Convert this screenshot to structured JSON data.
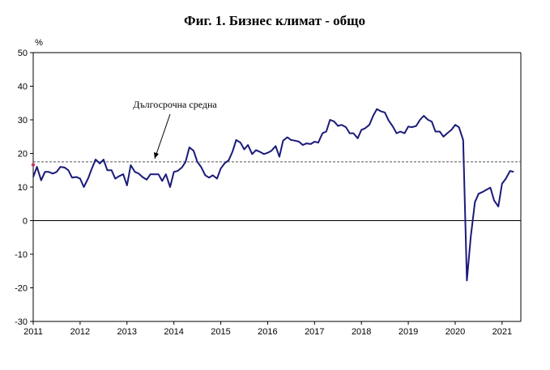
{
  "chart_data": {
    "type": "line",
    "title": "Фиг. 1. Бизнес климат - общо",
    "ylabel": "%",
    "xlabel": "",
    "ylim": [
      -30,
      50
    ],
    "yticks": [
      50,
      40,
      30,
      20,
      10,
      0,
      -10,
      -20,
      -30
    ],
    "xlim": [
      2011,
      2021.4
    ],
    "xticks": [
      "2011",
      "2012",
      "2013",
      "2014",
      "2015",
      "2016",
      "2017",
      "2018",
      "2019",
      "2020",
      "2021"
    ],
    "grid": false,
    "legend": "none",
    "colors": {
      "series": "#1a1a7a",
      "average": "#555555",
      "zero": "#000000",
      "marker": "#cc3366"
    },
    "reference_line": {
      "label": "Дългосрочна средна",
      "value": 17.5
    },
    "series": [
      {
        "values": [
          [
            2011.0,
            13.0
          ],
          [
            2011.08,
            16.0
          ],
          [
            2011.17,
            12.0
          ],
          [
            2011.25,
            14.5
          ],
          [
            2011.33,
            14.5
          ],
          [
            2011.42,
            14.0
          ],
          [
            2011.5,
            14.5
          ],
          [
            2011.58,
            16.0
          ],
          [
            2011.67,
            15.8
          ],
          [
            2011.75,
            15.0
          ],
          [
            2011.83,
            12.8
          ],
          [
            2011.92,
            13.0
          ],
          [
            2012.0,
            12.5
          ],
          [
            2012.08,
            10.0
          ],
          [
            2012.17,
            12.5
          ],
          [
            2012.25,
            15.5
          ],
          [
            2012.33,
            18.2
          ],
          [
            2012.42,
            17.0
          ],
          [
            2012.5,
            18.2
          ],
          [
            2012.58,
            15.0
          ],
          [
            2012.67,
            15.0
          ],
          [
            2012.75,
            12.5
          ],
          [
            2012.83,
            13.2
          ],
          [
            2012.92,
            13.8
          ],
          [
            2013.0,
            10.5
          ],
          [
            2013.08,
            16.5
          ],
          [
            2013.17,
            14.5
          ],
          [
            2013.25,
            14.0
          ],
          [
            2013.33,
            13.0
          ],
          [
            2013.42,
            12.2
          ],
          [
            2013.5,
            13.8
          ],
          [
            2013.58,
            13.8
          ],
          [
            2013.67,
            13.8
          ],
          [
            2013.75,
            11.8
          ],
          [
            2013.83,
            13.8
          ],
          [
            2013.92,
            10.0
          ],
          [
            2014.0,
            14.5
          ],
          [
            2014.08,
            14.8
          ],
          [
            2014.17,
            15.8
          ],
          [
            2014.25,
            17.5
          ],
          [
            2014.33,
            21.8
          ],
          [
            2014.42,
            20.8
          ],
          [
            2014.5,
            17.5
          ],
          [
            2014.58,
            16.0
          ],
          [
            2014.67,
            13.5
          ],
          [
            2014.75,
            12.8
          ],
          [
            2014.83,
            13.5
          ],
          [
            2014.92,
            12.5
          ],
          [
            2015.0,
            15.5
          ],
          [
            2015.08,
            17.0
          ],
          [
            2015.17,
            18.0
          ],
          [
            2015.25,
            20.5
          ],
          [
            2015.33,
            24.0
          ],
          [
            2015.42,
            23.2
          ],
          [
            2015.5,
            21.2
          ],
          [
            2015.58,
            22.5
          ],
          [
            2015.67,
            19.8
          ],
          [
            2015.75,
            21.0
          ],
          [
            2015.83,
            20.5
          ],
          [
            2015.92,
            19.8
          ],
          [
            2016.0,
            20.2
          ],
          [
            2016.08,
            20.8
          ],
          [
            2016.17,
            22.2
          ],
          [
            2016.25,
            19.0
          ],
          [
            2016.33,
            23.8
          ],
          [
            2016.42,
            24.8
          ],
          [
            2016.5,
            24.0
          ],
          [
            2016.58,
            23.8
          ],
          [
            2016.67,
            23.5
          ],
          [
            2016.75,
            22.5
          ],
          [
            2016.83,
            23.0
          ],
          [
            2016.92,
            22.8
          ],
          [
            2017.0,
            23.5
          ],
          [
            2017.08,
            23.2
          ],
          [
            2017.17,
            26.0
          ],
          [
            2017.25,
            26.5
          ],
          [
            2017.33,
            30.0
          ],
          [
            2017.42,
            29.5
          ],
          [
            2017.5,
            28.2
          ],
          [
            2017.58,
            28.5
          ],
          [
            2017.67,
            27.8
          ],
          [
            2017.75,
            26.0
          ],
          [
            2017.83,
            26.0
          ],
          [
            2017.92,
            24.5
          ],
          [
            2018.0,
            27.0
          ],
          [
            2018.08,
            27.5
          ],
          [
            2018.17,
            28.5
          ],
          [
            2018.25,
            31.2
          ],
          [
            2018.33,
            33.2
          ],
          [
            2018.42,
            32.5
          ],
          [
            2018.5,
            32.2
          ],
          [
            2018.58,
            29.8
          ],
          [
            2018.67,
            28.0
          ],
          [
            2018.75,
            26.0
          ],
          [
            2018.83,
            26.5
          ],
          [
            2018.92,
            26.0
          ],
          [
            2019.0,
            28.0
          ],
          [
            2019.08,
            27.8
          ],
          [
            2019.17,
            28.2
          ],
          [
            2019.25,
            30.0
          ],
          [
            2019.33,
            31.2
          ],
          [
            2019.42,
            30.0
          ],
          [
            2019.5,
            29.5
          ],
          [
            2019.58,
            26.5
          ],
          [
            2019.67,
            26.5
          ],
          [
            2019.75,
            25.0
          ],
          [
            2019.83,
            26.0
          ],
          [
            2019.92,
            27.0
          ],
          [
            2020.0,
            28.5
          ],
          [
            2020.08,
            27.8
          ],
          [
            2020.17,
            24.0
          ],
          [
            2020.25,
            -17.8
          ],
          [
            2020.33,
            -5.0
          ],
          [
            2020.42,
            5.5
          ],
          [
            2020.5,
            8.0
          ],
          [
            2020.58,
            8.5
          ],
          [
            2020.67,
            9.2
          ],
          [
            2020.75,
            9.8
          ],
          [
            2020.83,
            6.0
          ],
          [
            2020.92,
            4.2
          ],
          [
            2021.0,
            11.0
          ],
          [
            2021.08,
            12.5
          ],
          [
            2021.17,
            14.8
          ],
          [
            2021.25,
            14.5
          ]
        ]
      }
    ]
  }
}
